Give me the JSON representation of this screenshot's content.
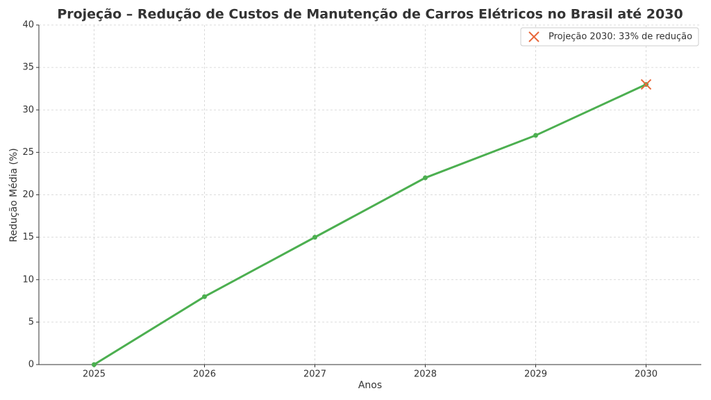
{
  "chart_data": {
    "type": "line",
    "title": "Projeção – Redução de Custos de Manutenção de Carros Elétricos no Brasil até 2030",
    "xlabel": "Anos",
    "ylabel": "Redução Média (%)",
    "x": [
      2025,
      2026,
      2027,
      2028,
      2029,
      2030
    ],
    "series": [
      {
        "color": "#4caf50",
        "values": [
          0,
          8,
          15,
          22,
          27,
          33
        ]
      },
      {
        "type": "scatter",
        "name": "Projeção 2030: 33% de redução",
        "color": "#e8673a",
        "x": [
          2030
        ],
        "values": [
          33
        ]
      }
    ],
    "xlim": [
      2024.5,
      2030.5
    ],
    "xticks": [
      2025,
      2026,
      2027,
      2028,
      2029,
      2030
    ],
    "ylim": [
      0,
      40
    ],
    "yticks": [
      0,
      5,
      10,
      15,
      20,
      25,
      30,
      35,
      40
    ],
    "grid": true,
    "legend": "upper right"
  }
}
